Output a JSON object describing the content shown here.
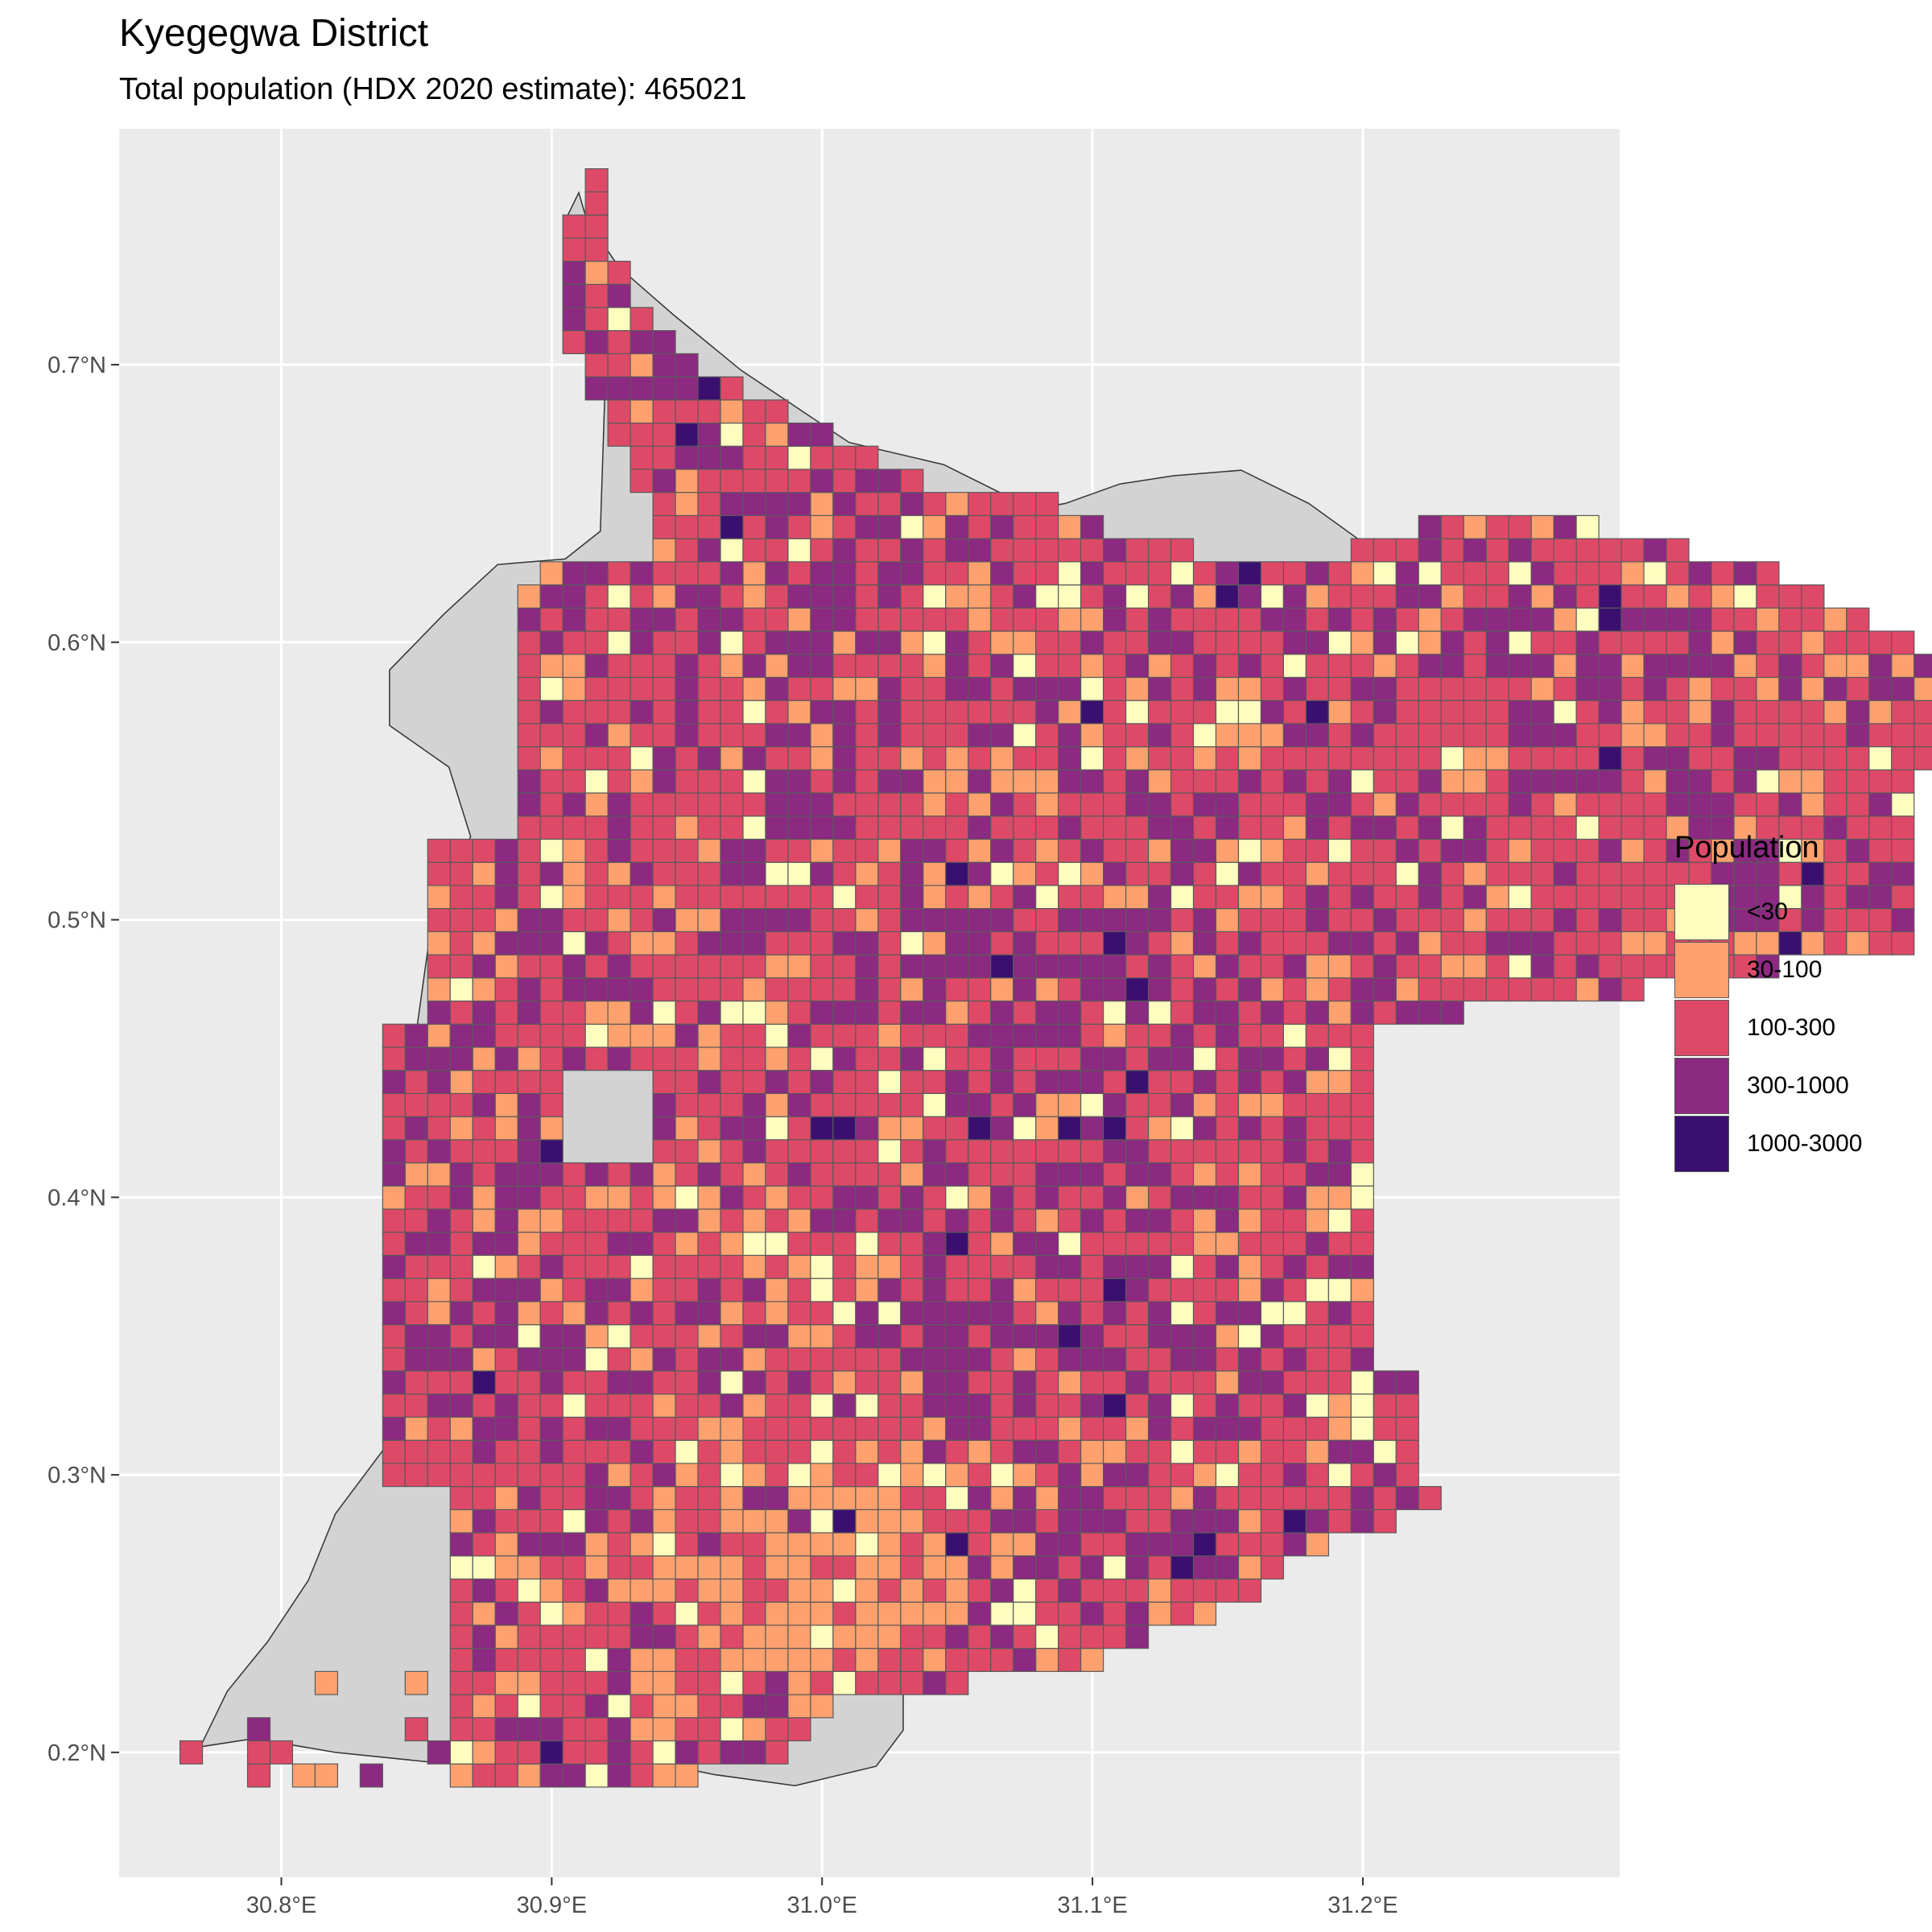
{
  "title": "Kyegegwa District",
  "subtitle": "Total population (HDX 2020 estimate): 465021",
  "map": {
    "x_axis": {
      "range": [
        30.74,
        31.295
      ],
      "ticks": [
        {
          "value": 30.8,
          "label": "30.8°E"
        },
        {
          "value": 30.9,
          "label": "30.9°E"
        },
        {
          "value": 31.0,
          "label": "31.0°E"
        },
        {
          "value": 31.1,
          "label": "31.1°E"
        },
        {
          "value": 31.2,
          "label": "31.2°E"
        }
      ]
    },
    "y_axis": {
      "range": [
        0.155,
        0.785
      ],
      "ticks": [
        {
          "value": 0.2,
          "label": "0.2°N"
        },
        {
          "value": 0.3,
          "label": "0.3°N"
        },
        {
          "value": 0.4,
          "label": "0.4°N"
        },
        {
          "value": 0.5,
          "label": "0.5°N"
        },
        {
          "value": 0.6,
          "label": "0.6°N"
        },
        {
          "value": 0.7,
          "label": "0.7°N"
        }
      ]
    },
    "cell_size_deg": 0.00833,
    "grid": true
  },
  "legend": {
    "title": "Population",
    "placement": "right",
    "classes": [
      {
        "label": "<30",
        "color": "#FCFDBF"
      },
      {
        "label": "30-100",
        "color": "#FEA16E"
      },
      {
        "label": "100-300",
        "color": "#DE4968"
      },
      {
        "label": "300-1000",
        "color": "#8C2981"
      },
      {
        "label": "1000-3000",
        "color": "#3B0F70"
      }
    ]
  },
  "colors": {
    "panel_background": "#EBEBEB",
    "grid_line": "#FFFFFF",
    "district_fill": "#D3D3D3",
    "cell_border": "#5A5A5A"
  }
}
